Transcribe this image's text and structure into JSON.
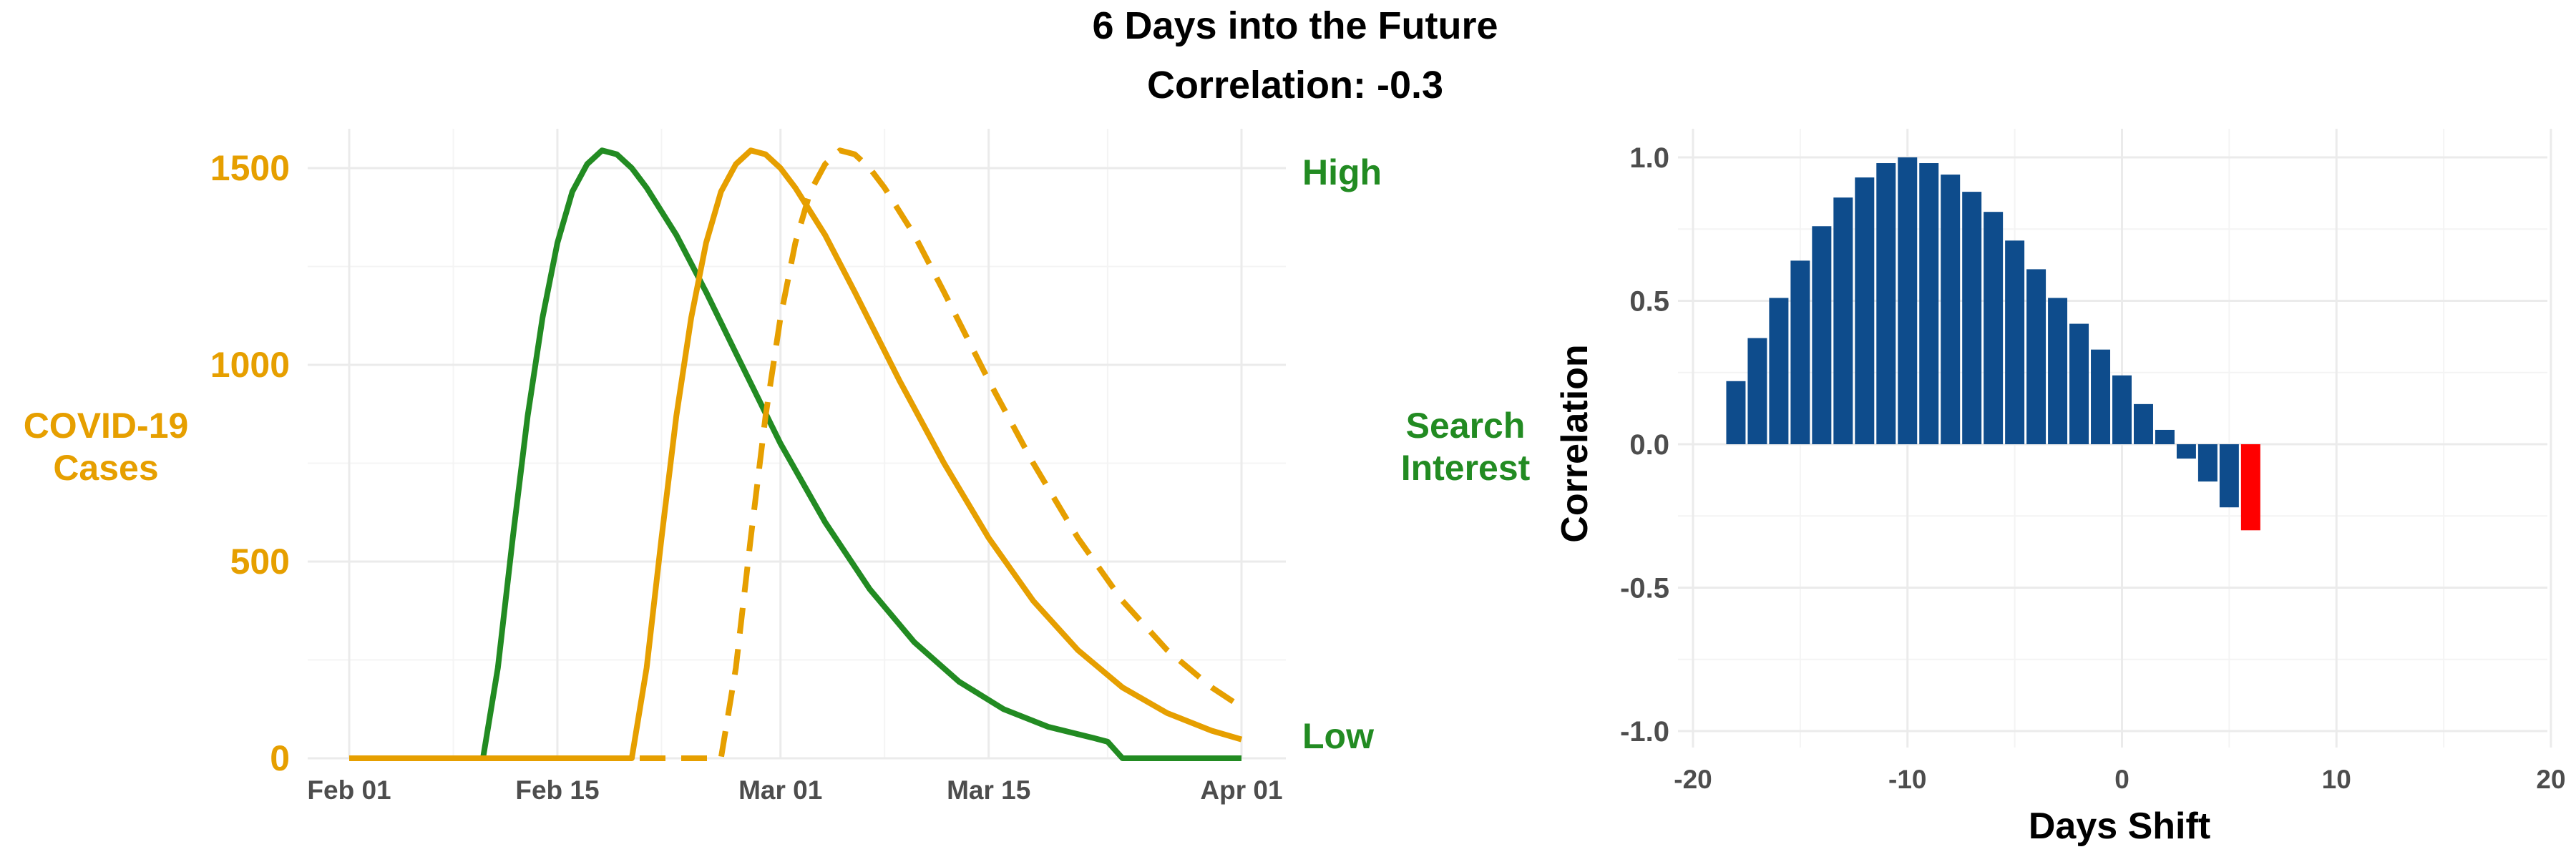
{
  "header": {
    "title": "6 Days into the Future",
    "subtitle": "Correlation: -0.3"
  },
  "colors": {
    "cases": "#E69F00",
    "search": "#228B22",
    "bar": "#0E4C8C",
    "highlight": "#FF0000",
    "grid": "#EBEBEB",
    "tick_text": "#4D4D4D"
  },
  "chart_data": [
    {
      "type": "line",
      "x_axis": {
        "type": "date",
        "range": [
          "2020-02-01",
          "2020-04-01"
        ],
        "ticks": [
          "Feb 01",
          "Feb 15",
          "Mar 01",
          "Mar 15",
          "Apr 01"
        ]
      },
      "y_left": {
        "label_line1": "COVID-19",
        "label_line2": "Cases",
        "ylim": [
          0,
          1600
        ],
        "ticks": [
          "0",
          "500",
          "1000",
          "1500"
        ]
      },
      "y_right": {
        "label_line1": "Search",
        "label_line2": "Interest",
        "high_label": "High",
        "low_label": "Low"
      },
      "grid": true,
      "series": [
        {
          "style": "solid",
          "color": "#228B22",
          "points": [
            [
              "2020-02-01",
              0
            ],
            [
              "2020-02-10",
              0
            ],
            [
              "2020-02-11",
              230
            ],
            [
              "2020-02-12",
              560
            ],
            [
              "2020-02-13",
              870
            ],
            [
              "2020-02-14",
              1120
            ],
            [
              "2020-02-15",
              1310
            ],
            [
              "2020-02-16",
              1440
            ],
            [
              "2020-02-17",
              1510
            ],
            [
              "2020-02-18",
              1545
            ],
            [
              "2020-02-19",
              1535
            ],
            [
              "2020-02-20",
              1500
            ],
            [
              "2020-02-21",
              1450
            ],
            [
              "2020-02-23",
              1330
            ],
            [
              "2020-02-25",
              1185
            ],
            [
              "2020-02-27",
              1030
            ],
            [
              "2020-03-01",
              800
            ],
            [
              "2020-03-04",
              600
            ],
            [
              "2020-03-07",
              430
            ],
            [
              "2020-03-10",
              295
            ],
            [
              "2020-03-13",
              195
            ],
            [
              "2020-03-16",
              125
            ],
            [
              "2020-03-19",
              80
            ],
            [
              "2020-03-22",
              52
            ],
            [
              "2020-03-23",
              42
            ],
            [
              "2020-03-24",
              0
            ],
            [
              "2020-04-01",
              0
            ]
          ]
        },
        {
          "style": "solid",
          "color": "#E69F00",
          "points": [
            [
              "2020-02-01",
              0
            ],
            [
              "2020-02-20",
              0
            ],
            [
              "2020-02-21",
              230
            ],
            [
              "2020-02-22",
              560
            ],
            [
              "2020-02-23",
              870
            ],
            [
              "2020-02-24",
              1120
            ],
            [
              "2020-02-25",
              1310
            ],
            [
              "2020-02-26",
              1440
            ],
            [
              "2020-02-27",
              1510
            ],
            [
              "2020-02-28",
              1545
            ],
            [
              "2020-02-29",
              1535
            ],
            [
              "2020-03-01",
              1500
            ],
            [
              "2020-03-02",
              1450
            ],
            [
              "2020-03-04",
              1330
            ],
            [
              "2020-03-06",
              1185
            ],
            [
              "2020-03-09",
              960
            ],
            [
              "2020-03-12",
              750
            ],
            [
              "2020-03-15",
              560
            ],
            [
              "2020-03-18",
              400
            ],
            [
              "2020-03-21",
              275
            ],
            [
              "2020-03-24",
              180
            ],
            [
              "2020-03-27",
              115
            ],
            [
              "2020-03-30",
              70
            ],
            [
              "2020-04-01",
              48
            ]
          ]
        },
        {
          "style": "dashed",
          "color": "#E69F00",
          "points": [
            [
              "2020-02-01",
              0
            ],
            [
              "2020-02-26",
              0
            ],
            [
              "2020-02-27",
              230
            ],
            [
              "2020-02-28",
              560
            ],
            [
              "2020-02-29",
              870
            ],
            [
              "2020-03-01",
              1120
            ],
            [
              "2020-03-02",
              1310
            ],
            [
              "2020-03-03",
              1440
            ],
            [
              "2020-03-04",
              1510
            ],
            [
              "2020-03-05",
              1545
            ],
            [
              "2020-03-06",
              1535
            ],
            [
              "2020-03-07",
              1500
            ],
            [
              "2020-03-08",
              1450
            ],
            [
              "2020-03-10",
              1330
            ],
            [
              "2020-03-12",
              1185
            ],
            [
              "2020-03-15",
              960
            ],
            [
              "2020-03-18",
              750
            ],
            [
              "2020-03-21",
              560
            ],
            [
              "2020-03-24",
              400
            ],
            [
              "2020-03-27",
              275
            ],
            [
              "2020-03-30",
              180
            ],
            [
              "2020-04-01",
              130
            ]
          ]
        }
      ]
    },
    {
      "type": "bar",
      "xlabel": "Days Shift",
      "ylabel": "Correlation",
      "xlim": [
        -20,
        20
      ],
      "ylim": [
        -1,
        1
      ],
      "xticks": [
        -20,
        -10,
        0,
        10,
        20
      ],
      "yticks": [
        -1.0,
        -0.5,
        0.0,
        0.5,
        1.0
      ],
      "ytick_labels": [
        "-1.0",
        "-0.5",
        "0.0",
        "0.5",
        "1.0"
      ],
      "grid": true,
      "x": [
        -18,
        -17,
        -16,
        -15,
        -14,
        -13,
        -12,
        -11,
        -10,
        -9,
        -8,
        -7,
        -6,
        -5,
        -4,
        -3,
        -2,
        -1,
        0,
        1,
        2,
        3,
        4,
        5,
        6
      ],
      "values": [
        0.22,
        0.37,
        0.51,
        0.64,
        0.76,
        0.86,
        0.93,
        0.98,
        1.0,
        0.98,
        0.94,
        0.88,
        0.81,
        0.71,
        0.61,
        0.51,
        0.42,
        0.33,
        0.24,
        0.14,
        0.05,
        -0.05,
        -0.13,
        -0.22,
        -0.3
      ],
      "highlight_x": 6
    }
  ]
}
